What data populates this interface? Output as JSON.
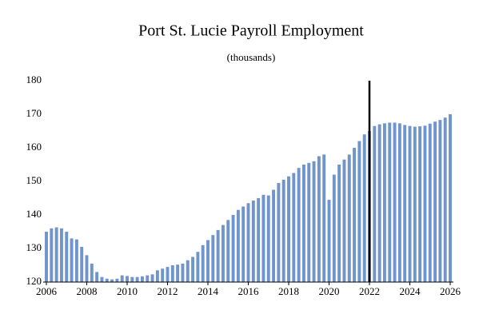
{
  "chart_data": {
    "type": "bar",
    "title": "Port St. Lucie Payroll Employment",
    "subtitle": "(thousands)",
    "x": [
      2006,
      2006.25,
      2006.5,
      2006.75,
      2007,
      2007.25,
      2007.5,
      2007.75,
      2008,
      2008.25,
      2008.5,
      2008.75,
      2009,
      2009.25,
      2009.5,
      2009.75,
      2010,
      2010.25,
      2010.5,
      2010.75,
      2011,
      2011.25,
      2011.5,
      2011.75,
      2012,
      2012.25,
      2012.5,
      2012.75,
      2013,
      2013.25,
      2013.5,
      2013.75,
      2014,
      2014.25,
      2014.5,
      2014.75,
      2015,
      2015.25,
      2015.5,
      2015.75,
      2016,
      2016.25,
      2016.5,
      2016.75,
      2017,
      2017.25,
      2017.5,
      2017.75,
      2018,
      2018.25,
      2018.5,
      2018.75,
      2019,
      2019.25,
      2019.5,
      2019.75,
      2020,
      2020.25,
      2020.5,
      2020.75,
      2021,
      2021.25,
      2021.5,
      2021.75,
      2022,
      2022.25,
      2022.5,
      2022.75,
      2023,
      2023.25,
      2023.5,
      2023.75,
      2024,
      2024.25,
      2024.5,
      2024.75,
      2025,
      2025.25,
      2025.5,
      2025.75,
      2026
    ],
    "values": [
      135,
      136,
      136.3,
      136,
      135,
      133,
      132.7,
      130.5,
      128,
      125.5,
      123,
      121.5,
      121,
      120.8,
      121,
      122,
      121.8,
      121.5,
      121.5,
      121.7,
      122,
      122.3,
      123.5,
      124,
      124.5,
      125,
      125.2,
      125.5,
      126.5,
      127.5,
      129,
      131,
      132.5,
      134,
      135.5,
      137,
      138.5,
      140,
      141.5,
      142.5,
      143.5,
      144.3,
      145,
      146,
      145.8,
      147.5,
      149.5,
      150.5,
      151.5,
      152.5,
      154,
      155,
      155.5,
      156,
      157.5,
      158,
      144.5,
      152,
      155,
      156.5,
      158,
      160,
      162,
      164,
      165,
      166.5,
      167,
      167.3,
      167.5,
      167.5,
      167.3,
      166.8,
      166.5,
      166.3,
      166.4,
      166.6,
      167.2,
      167.8,
      168.3,
      169,
      170
    ],
    "color": "#7094cc",
    "xlim": [
      2006,
      2026
    ],
    "xticks": [
      2006,
      2008,
      2010,
      2012,
      2014,
      2016,
      2018,
      2020,
      2022,
      2024,
      2026
    ],
    "ylim": [
      120,
      180
    ],
    "yticks": [
      120,
      130,
      140,
      150,
      160,
      170,
      180
    ],
    "vertical_line": 2022,
    "grid": false
  }
}
